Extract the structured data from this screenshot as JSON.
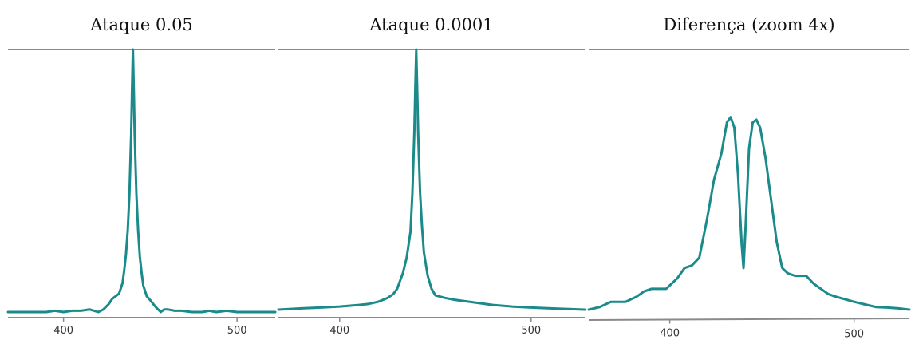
{
  "chart_data": [
    {
      "type": "line",
      "title": "Ataque 0.05",
      "xlabel": "",
      "ylabel": "",
      "xlim": [
        368,
        522
      ],
      "ylim": [
        0,
        1
      ],
      "x_ticks": [
        400,
        500
      ],
      "color": "#1a8a8a",
      "grid": false,
      "x": [
        368,
        380,
        390,
        395,
        400,
        405,
        410,
        415,
        420,
        423,
        426,
        428,
        432,
        434,
        435,
        436,
        437,
        438,
        439,
        439.5,
        440,
        440.5,
        441,
        442,
        443,
        444,
        445,
        446,
        448,
        450,
        453,
        456,
        458,
        460,
        464,
        468,
        474,
        480,
        484,
        488,
        494,
        500,
        510,
        522
      ],
      "y": [
        0.0,
        0.0,
        0.0,
        0.005,
        0.0,
        0.005,
        0.005,
        0.01,
        0.0,
        0.01,
        0.03,
        0.05,
        0.07,
        0.11,
        0.16,
        0.22,
        0.31,
        0.45,
        0.68,
        0.85,
        1.0,
        0.85,
        0.68,
        0.45,
        0.31,
        0.21,
        0.15,
        0.1,
        0.06,
        0.045,
        0.02,
        0.0,
        0.01,
        0.01,
        0.005,
        0.005,
        0.0,
        0.0,
        0.005,
        0.0,
        0.005,
        0.0,
        0.0,
        0.0
      ]
    },
    {
      "type": "line",
      "title": "Ataque 0.0001",
      "xlabel": "",
      "ylabel": "",
      "xlim": [
        368,
        528
      ],
      "ylim": [
        0,
        1
      ],
      "x_ticks": [
        400,
        500
      ],
      "color": "#1a8a8a",
      "grid": false,
      "x": [
        368,
        380,
        390,
        400,
        410,
        415,
        420,
        425,
        428,
        430,
        433,
        435,
        437,
        438,
        439,
        439.5,
        440,
        440.5,
        441,
        442,
        443,
        444,
        446,
        448,
        450,
        455,
        460,
        470,
        480,
        490,
        500,
        510,
        528
      ],
      "y": [
        0.0,
        0.005,
        0.008,
        0.012,
        0.018,
        0.022,
        0.03,
        0.045,
        0.06,
        0.08,
        0.14,
        0.2,
        0.3,
        0.45,
        0.68,
        0.85,
        1.0,
        0.85,
        0.68,
        0.45,
        0.32,
        0.22,
        0.13,
        0.08,
        0.055,
        0.045,
        0.038,
        0.028,
        0.018,
        0.012,
        0.008,
        0.005,
        0.0
      ]
    },
    {
      "type": "line",
      "title": "Diferença (zoom 4x)",
      "xlabel": "",
      "ylabel": "",
      "xlim": [
        356,
        530
      ],
      "ylim": [
        0,
        1
      ],
      "x_ticks": [
        400,
        500
      ],
      "color": "#1a8a8a",
      "grid": false,
      "x": [
        356,
        362,
        368,
        376,
        382,
        386,
        390,
        398,
        404,
        408,
        412,
        416,
        420,
        424,
        428,
        431,
        433,
        435,
        437,
        439,
        440,
        441,
        443,
        445,
        447,
        449,
        452,
        455,
        458,
        461,
        464,
        468,
        474,
        478,
        482,
        486,
        490,
        495,
        500,
        506,
        512,
        518,
        524,
        530
      ],
      "y": [
        0.0,
        0.01,
        0.03,
        0.03,
        0.05,
        0.07,
        0.08,
        0.08,
        0.12,
        0.16,
        0.17,
        0.2,
        0.34,
        0.5,
        0.6,
        0.72,
        0.74,
        0.7,
        0.52,
        0.25,
        0.16,
        0.3,
        0.62,
        0.72,
        0.73,
        0.7,
        0.58,
        0.42,
        0.26,
        0.16,
        0.14,
        0.13,
        0.13,
        0.1,
        0.08,
        0.06,
        0.05,
        0.04,
        0.03,
        0.02,
        0.01,
        0.008,
        0.005,
        0.0
      ]
    }
  ]
}
